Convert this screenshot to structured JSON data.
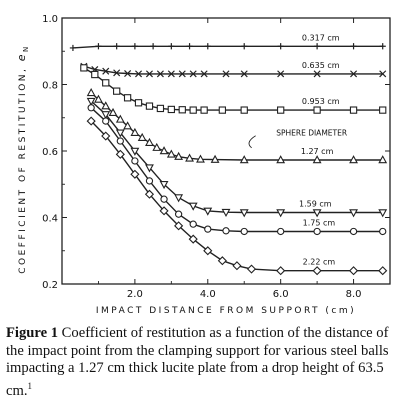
{
  "chart_data": {
    "type": "line",
    "title": "",
    "xlabel": "IMPACT  DISTANCE  FROM  SUPPORT  (cm)",
    "ylabel": "COEFFICIENT  OF  RESTITUTION,",
    "ylabel_symbol": "e",
    "ylabel_subscript": "N",
    "xlim": [
      0,
      9.0
    ],
    "ylim": [
      0.2,
      1.0
    ],
    "xticks": [
      2.0,
      4.0,
      6.0,
      8.0
    ],
    "xtick_labels": [
      "2.0",
      "4.0",
      "6.0",
      "8.0"
    ],
    "yticks": [
      0.2,
      0.4,
      0.6,
      0.8,
      1.0
    ],
    "ytick_labels": [
      "0.2",
      "0.4",
      "0.6",
      "0.8",
      "1.0"
    ],
    "grid": false,
    "series": [
      {
        "name": "0.317 cm",
        "marker": "plus",
        "x": [
          0.3,
          1.0,
          1.5,
          2.0,
          2.5,
          3.0,
          3.5,
          4.0,
          5.0,
          6.0,
          7.0,
          8.0,
          8.8
        ],
        "y": [
          0.91,
          0.915,
          0.915,
          0.915,
          0.915,
          0.915,
          0.915,
          0.915,
          0.915,
          0.915,
          0.915,
          0.915,
          0.915
        ]
      },
      {
        "name": "0.635 cm",
        "marker": "x",
        "x": [
          0.6,
          0.9,
          1.2,
          1.5,
          1.8,
          2.1,
          2.4,
          2.7,
          3.0,
          3.3,
          3.6,
          3.9,
          4.5,
          5.0,
          6.0,
          7.0,
          8.0,
          8.8
        ],
        "y": [
          0.855,
          0.845,
          0.84,
          0.835,
          0.833,
          0.832,
          0.832,
          0.832,
          0.832,
          0.832,
          0.832,
          0.832,
          0.832,
          0.832,
          0.832,
          0.832,
          0.832,
          0.832
        ]
      },
      {
        "name": "0.953 cm",
        "marker": "square",
        "x": [
          0.6,
          0.9,
          1.2,
          1.5,
          1.8,
          2.1,
          2.4,
          2.7,
          3.0,
          3.3,
          3.6,
          3.9,
          4.4,
          5.0,
          6.0,
          7.0,
          8.0,
          8.8
        ],
        "y": [
          0.85,
          0.83,
          0.805,
          0.78,
          0.76,
          0.745,
          0.735,
          0.728,
          0.725,
          0.724,
          0.723,
          0.723,
          0.723,
          0.723,
          0.723,
          0.723,
          0.723,
          0.723
        ]
      },
      {
        "name": "1.27 cm",
        "marker": "triangle-up",
        "x": [
          0.8,
          1.0,
          1.2,
          1.4,
          1.6,
          1.8,
          2.0,
          2.2,
          2.4,
          2.6,
          2.8,
          3.0,
          3.2,
          3.5,
          3.8,
          4.2,
          5.0,
          6.0,
          7.0,
          8.0,
          8.8
        ],
        "y": [
          0.775,
          0.755,
          0.735,
          0.715,
          0.695,
          0.675,
          0.655,
          0.64,
          0.625,
          0.61,
          0.6,
          0.59,
          0.583,
          0.578,
          0.575,
          0.574,
          0.573,
          0.573,
          0.573,
          0.573,
          0.573
        ]
      },
      {
        "name": "1.59 cm",
        "marker": "triangle-down",
        "x": [
          0.8,
          1.2,
          1.6,
          2.0,
          2.4,
          2.8,
          3.2,
          3.6,
          4.0,
          4.5,
          5.0,
          6.0,
          7.0,
          8.0,
          8.8
        ],
        "y": [
          0.75,
          0.71,
          0.655,
          0.6,
          0.55,
          0.5,
          0.46,
          0.435,
          0.42,
          0.416,
          0.415,
          0.415,
          0.415,
          0.415,
          0.415
        ]
      },
      {
        "name": "1.75 cm",
        "marker": "circle",
        "x": [
          0.8,
          1.2,
          1.6,
          2.0,
          2.4,
          2.8,
          3.2,
          3.6,
          4.0,
          4.5,
          5.0,
          6.0,
          7.0,
          8.0,
          8.8
        ],
        "y": [
          0.73,
          0.69,
          0.63,
          0.57,
          0.51,
          0.455,
          0.41,
          0.38,
          0.365,
          0.36,
          0.358,
          0.358,
          0.358,
          0.358,
          0.358
        ]
      },
      {
        "name": "2.22 cm",
        "marker": "diamond",
        "x": [
          0.8,
          1.2,
          1.6,
          2.0,
          2.4,
          2.8,
          3.2,
          3.6,
          4.0,
          4.4,
          4.8,
          5.2,
          6.0,
          7.0,
          8.0,
          8.8
        ],
        "y": [
          0.69,
          0.645,
          0.59,
          0.53,
          0.47,
          0.42,
          0.375,
          0.335,
          0.3,
          0.27,
          0.255,
          0.245,
          0.24,
          0.24,
          0.24,
          0.24
        ]
      }
    ],
    "annotations": [
      {
        "text": "SPHERE DIAMETER"
      }
    ]
  },
  "caption": {
    "label": "Figure 1",
    "text": " Coefficient of restitution as a function of the distance of the impact point from the clamping support for various steel balls impacting a 1.27 cm thick lucite plate from a drop height of 63.5 cm.",
    "footnote": "1"
  }
}
